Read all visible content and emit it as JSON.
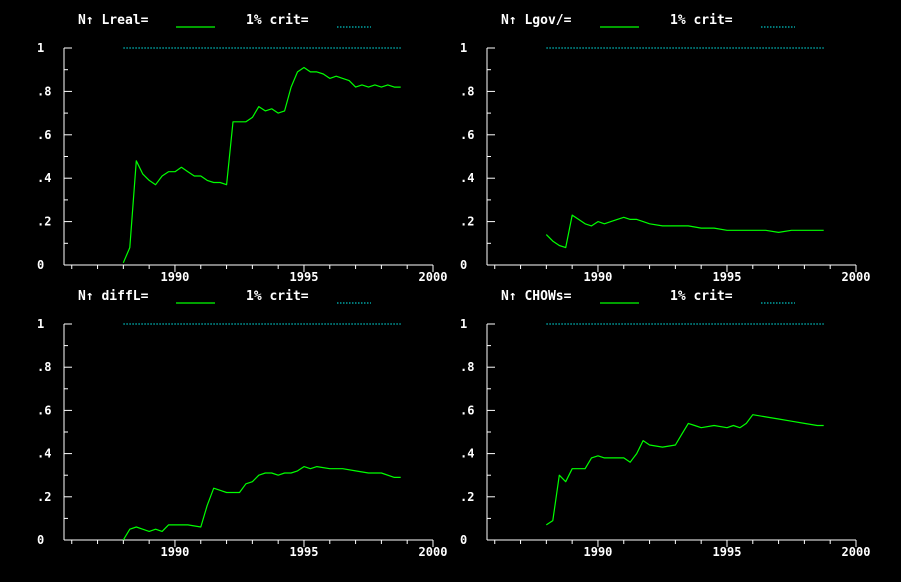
{
  "colors": {
    "background": "#000000",
    "axis": "#ffffff",
    "series": "#00ff00",
    "critical": "#00c0c0",
    "text": "#ffffff"
  },
  "chart_data": [
    {
      "type": "line",
      "title": "N↑ Lreal=",
      "legend": {
        "series_label": "N↑ Lreal=",
        "crit_label": "1% crit="
      },
      "xlim": [
        1985.7,
        2000
      ],
      "ylim": [
        0,
        1
      ],
      "x_ticks": [
        1990,
        1995,
        2000
      ],
      "x_tick_labels": [
        "1990",
        "1995",
        "2000"
      ],
      "y_ticks": [
        0,
        0.2,
        0.4,
        0.6,
        0.8,
        1
      ],
      "y_tick_labels": [
        "0",
        ".2",
        ".4",
        ".6",
        ".8",
        "1"
      ],
      "series": [
        {
          "x": [
            1988.0,
            1988.25,
            1988.5,
            1988.75,
            1989.0,
            1989.25,
            1989.5,
            1989.75,
            1990.0,
            1990.25,
            1990.5,
            1990.75,
            1991.0,
            1991.25,
            1991.5,
            1991.75,
            1992.0,
            1992.25,
            1992.5,
            1992.75,
            1993.0,
            1993.25,
            1993.5,
            1993.75,
            1994.0,
            1994.25,
            1994.5,
            1994.75,
            1995.0,
            1995.25,
            1995.5,
            1995.75,
            1996.0,
            1996.25,
            1996.5,
            1996.75,
            1997.0,
            1997.25,
            1997.5,
            1997.75,
            1998.0,
            1998.25,
            1998.5,
            1998.75
          ],
          "values": [
            0.01,
            0.08,
            0.48,
            0.42,
            0.39,
            0.37,
            0.41,
            0.43,
            0.43,
            0.45,
            0.43,
            0.41,
            0.41,
            0.39,
            0.38,
            0.38,
            0.37,
            0.66,
            0.66,
            0.66,
            0.68,
            0.73,
            0.71,
            0.72,
            0.7,
            0.71,
            0.82,
            0.89,
            0.91,
            0.89,
            0.89,
            0.88,
            0.86,
            0.87,
            0.86,
            0.85,
            0.82,
            0.83,
            0.82,
            0.83,
            0.82,
            0.83,
            0.82,
            0.82
          ]
        }
      ],
      "critical_value": 1.0,
      "critical_x": [
        1988.0,
        1998.75
      ]
    },
    {
      "type": "line",
      "title": "N↑ Lgov/=",
      "legend": {
        "series_label": "N↑ Lgov/=",
        "crit_label": "1% crit="
      },
      "xlim": [
        1985.7,
        2000
      ],
      "ylim": [
        0,
        1
      ],
      "x_ticks": [
        1990,
        1995,
        2000
      ],
      "x_tick_labels": [
        "1990",
        "1995",
        "2000"
      ],
      "y_ticks": [
        0,
        0.2,
        0.4,
        0.6,
        0.8,
        1
      ],
      "y_tick_labels": [
        "0",
        ".2",
        ".4",
        ".6",
        ".8",
        "1"
      ],
      "series": [
        {
          "x": [
            1988.0,
            1988.25,
            1988.5,
            1988.75,
            1989.0,
            1989.25,
            1989.5,
            1989.75,
            1990.0,
            1990.25,
            1990.5,
            1990.75,
            1991.0,
            1991.25,
            1991.5,
            1991.75,
            1992.0,
            1992.5,
            1993.0,
            1993.5,
            1994.0,
            1994.5,
            1995.0,
            1995.5,
            1996.0,
            1996.5,
            1997.0,
            1997.5,
            1998.0,
            1998.5,
            1998.75
          ],
          "values": [
            0.14,
            0.11,
            0.09,
            0.08,
            0.23,
            0.21,
            0.19,
            0.18,
            0.2,
            0.19,
            0.2,
            0.21,
            0.22,
            0.21,
            0.21,
            0.2,
            0.19,
            0.18,
            0.18,
            0.18,
            0.17,
            0.17,
            0.16,
            0.16,
            0.16,
            0.16,
            0.15,
            0.16,
            0.16,
            0.16,
            0.16
          ]
        }
      ],
      "critical_value": 1.0,
      "critical_x": [
        1988.0,
        1998.75
      ]
    },
    {
      "type": "line",
      "title": "N↑ diffL=",
      "legend": {
        "series_label": "N↑ diffL=",
        "crit_label": "1% crit="
      },
      "xlim": [
        1985.7,
        2000
      ],
      "ylim": [
        0,
        1
      ],
      "x_ticks": [
        1990,
        1995,
        2000
      ],
      "x_tick_labels": [
        "1990",
        "1995",
        "2000"
      ],
      "y_ticks": [
        0,
        0.2,
        0.4,
        0.6,
        0.8,
        1
      ],
      "y_tick_labels": [
        "0",
        ".2",
        ".4",
        ".6",
        ".8",
        "1"
      ],
      "series": [
        {
          "x": [
            1988.0,
            1988.25,
            1988.5,
            1988.75,
            1989.0,
            1989.25,
            1989.5,
            1989.75,
            1990.0,
            1990.5,
            1991.0,
            1991.25,
            1991.5,
            1991.75,
            1992.0,
            1992.25,
            1992.5,
            1992.75,
            1993.0,
            1993.25,
            1993.5,
            1993.75,
            1994.0,
            1994.25,
            1994.5,
            1994.75,
            1995.0,
            1995.25,
            1995.5,
            1996.0,
            1996.5,
            1997.0,
            1997.5,
            1998.0,
            1998.5,
            1998.75
          ],
          "values": [
            0.0,
            0.05,
            0.06,
            0.05,
            0.04,
            0.05,
            0.04,
            0.07,
            0.07,
            0.07,
            0.06,
            0.16,
            0.24,
            0.23,
            0.22,
            0.22,
            0.22,
            0.26,
            0.27,
            0.3,
            0.31,
            0.31,
            0.3,
            0.31,
            0.31,
            0.32,
            0.34,
            0.33,
            0.34,
            0.33,
            0.33,
            0.32,
            0.31,
            0.31,
            0.29,
            0.29
          ]
        }
      ],
      "critical_value": 1.0,
      "critical_x": [
        1988.0,
        1998.75
      ]
    },
    {
      "type": "line",
      "title": "N↑ CHOWs=",
      "legend": {
        "series_label": "N↑ CHOWs=",
        "crit_label": "1% crit="
      },
      "xlim": [
        1985.7,
        2000
      ],
      "ylim": [
        0,
        1
      ],
      "x_ticks": [
        1990,
        1995,
        2000
      ],
      "x_tick_labels": [
        "1990",
        "1995",
        "2000"
      ],
      "y_ticks": [
        0,
        0.2,
        0.4,
        0.6,
        0.8,
        1
      ],
      "y_tick_labels": [
        "0",
        ".2",
        ".4",
        ".6",
        ".8",
        "1"
      ],
      "series": [
        {
          "x": [
            1988.0,
            1988.25,
            1988.5,
            1988.75,
            1989.0,
            1989.25,
            1989.5,
            1989.75,
            1990.0,
            1990.25,
            1990.5,
            1990.75,
            1991.0,
            1991.25,
            1991.5,
            1991.75,
            1992.0,
            1992.5,
            1993.0,
            1993.25,
            1993.5,
            1993.75,
            1994.0,
            1994.5,
            1995.0,
            1995.25,
            1995.5,
            1995.75,
            1996.0,
            1996.5,
            1997.0,
            1997.5,
            1998.0,
            1998.5,
            1998.75
          ],
          "values": [
            0.07,
            0.09,
            0.3,
            0.27,
            0.33,
            0.33,
            0.33,
            0.38,
            0.39,
            0.38,
            0.38,
            0.38,
            0.38,
            0.36,
            0.4,
            0.46,
            0.44,
            0.43,
            0.44,
            0.49,
            0.54,
            0.53,
            0.52,
            0.53,
            0.52,
            0.53,
            0.52,
            0.54,
            0.58,
            0.57,
            0.56,
            0.55,
            0.54,
            0.53,
            0.53
          ]
        }
      ],
      "critical_value": 1.0,
      "critical_x": [
        1988.0,
        1998.75
      ]
    }
  ]
}
